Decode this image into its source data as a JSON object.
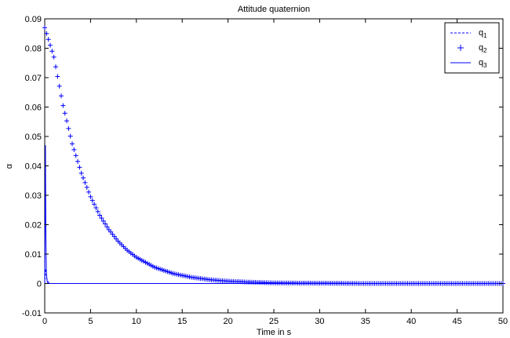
{
  "chart_data": {
    "type": "line",
    "title": "Attitude quaternion",
    "xlabel": "Time in s",
    "ylabel": "α",
    "xlim": [
      0,
      50
    ],
    "ylim": [
      -0.01,
      0.09
    ],
    "xticks": [
      0,
      5,
      10,
      15,
      20,
      25,
      30,
      35,
      40,
      45,
      50
    ],
    "yticks": [
      -0.01,
      0,
      0.01,
      0.02,
      0.03,
      0.04,
      0.05,
      0.06,
      0.07,
      0.08,
      0.09
    ],
    "ytick_labels": [
      "-0.01",
      "0",
      "0.01",
      "0.02",
      "0.03",
      "0.04",
      "0.05",
      "0.06",
      "0.07",
      "0.08",
      "0.09"
    ],
    "grid": false,
    "legend_position": "top-right",
    "series": [
      {
        "name": "q1",
        "style": "dashed",
        "color": "#0000ff",
        "x": [
          0,
          0.05,
          0.1,
          0.15,
          0.2,
          0.3,
          0.5,
          50
        ],
        "y": [
          0,
          0.003,
          0.005,
          0.004,
          0.002,
          0.001,
          0,
          0
        ]
      },
      {
        "name": "q2",
        "style": "plus-markers",
        "color": "#0000ff",
        "x": [
          0,
          0.5,
          1,
          2,
          3,
          4,
          5,
          6,
          7,
          8,
          9,
          10,
          12,
          14,
          16,
          18,
          20,
          22,
          25,
          30,
          35,
          40,
          45,
          50
        ],
        "y": [
          0.087,
          0.082,
          0.077,
          0.0605,
          0.0475,
          0.0375,
          0.0295,
          0.0232,
          0.0183,
          0.0144,
          0.0113,
          0.0089,
          0.0055,
          0.0034,
          0.0021,
          0.0013,
          0.0008,
          0.0005,
          0.0002,
          0.0001,
          0,
          0,
          0,
          0
        ]
      },
      {
        "name": "q3",
        "style": "solid",
        "color": "#0000ff",
        "x": [
          0,
          0.08,
          0.12,
          0.18,
          0.25,
          0.35,
          0.5,
          50
        ],
        "y": [
          0,
          0.047,
          0.02,
          0.004,
          0.001,
          0,
          0,
          0
        ]
      }
    ],
    "legend": [
      {
        "base": "q",
        "sub": "1",
        "style": "dashed"
      },
      {
        "base": "q",
        "sub": "2",
        "style": "plus-markers"
      },
      {
        "base": "q",
        "sub": "3",
        "style": "solid"
      }
    ]
  }
}
